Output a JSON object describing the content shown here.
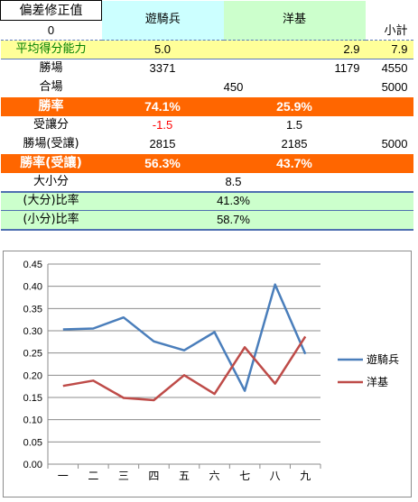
{
  "header": {
    "title": "偏差修正值",
    "sub_value": "0",
    "team_a": "遊騎兵",
    "team_b": "洋基",
    "subtotal": "小計"
  },
  "rows": {
    "avg": {
      "label": "平均得分能力",
      "a": "5.0",
      "b": "2.9",
      "total": "7.9"
    },
    "wins": {
      "label": "勝場",
      "a": "3371",
      "b": "1179",
      "total": "4550"
    },
    "ties": {
      "label": "合場",
      "value": "450",
      "total": "5000"
    },
    "winrate": {
      "label": "勝率",
      "a": "74.1%",
      "b": "25.9%"
    },
    "handicap": {
      "label": "受讓分",
      "a": "-1.5",
      "b": "1.5"
    },
    "wins_h": {
      "label": "勝場(受讓)",
      "a": "2815",
      "b": "2185",
      "total": "5000"
    },
    "winrate_h": {
      "label": "勝率(受讓)",
      "a": "56.3%",
      "b": "43.7%"
    },
    "ou": {
      "label": "大小分",
      "value": "8.5"
    },
    "over": {
      "label": "(大分)比率",
      "value": "41.3%"
    },
    "under": {
      "label": "(小分)比率",
      "value": "58.7%"
    }
  },
  "chart_data": {
    "type": "line",
    "categories": [
      "一",
      "二",
      "三",
      "四",
      "五",
      "六",
      "七",
      "八",
      "九"
    ],
    "ylim": [
      0,
      0.45
    ],
    "yticks": [
      "0.00",
      "0.05",
      "0.10",
      "0.15",
      "0.20",
      "0.25",
      "0.30",
      "0.35",
      "0.40",
      "0.45"
    ],
    "grid": true,
    "legend": "right",
    "series": [
      {
        "name": "遊騎兵",
        "color": "#4a7ebb",
        "values": [
          0.303,
          0.305,
          0.33,
          0.276,
          0.256,
          0.297,
          0.165,
          0.404,
          0.248
        ]
      },
      {
        "name": "洋基",
        "color": "#be4b48",
        "values": [
          0.176,
          0.188,
          0.149,
          0.144,
          0.2,
          0.158,
          0.263,
          0.181,
          0.287
        ]
      }
    ]
  }
}
